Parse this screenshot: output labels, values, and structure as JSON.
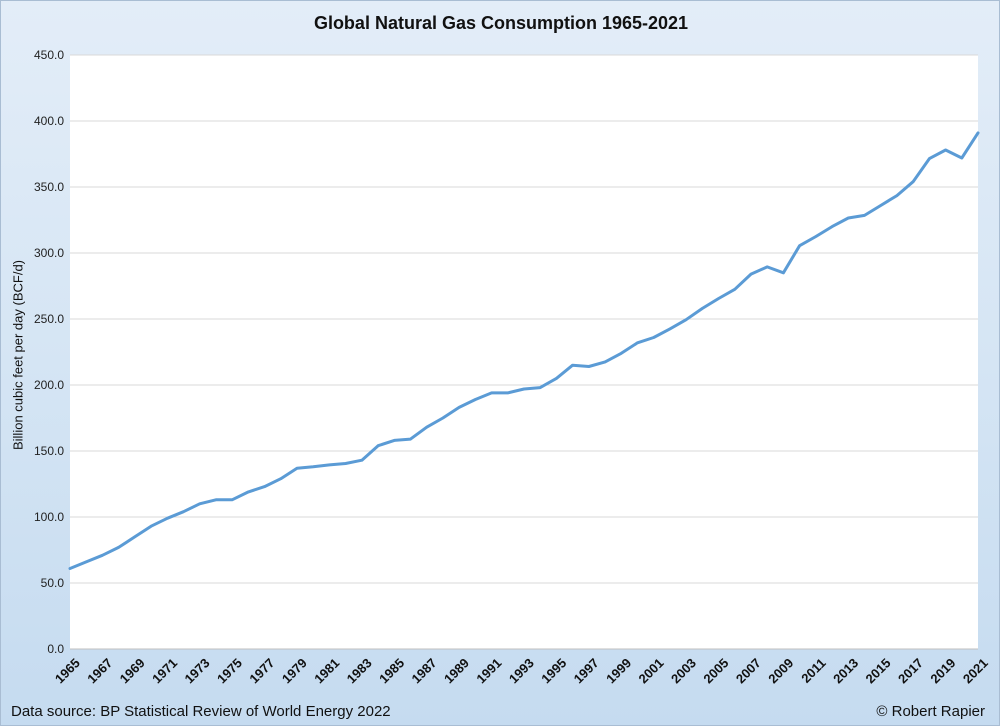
{
  "chart_data": {
    "type": "line",
    "title": "Global Natural Gas Consumption 1965-2021",
    "ylabel": "Billion cubic feet per day (BCF/d)",
    "xlabel": "",
    "ylim": [
      0,
      450
    ],
    "yticks": [
      "0.0",
      "50.0",
      "100.0",
      "150.0",
      "200.0",
      "250.0",
      "300.0",
      "350.0",
      "400.0",
      "450.0"
    ],
    "xtick_labels": [
      "1965",
      "1967",
      "1969",
      "1971",
      "1973",
      "1975",
      "1977",
      "1979",
      "1981",
      "1983",
      "1985",
      "1987",
      "1989",
      "1991",
      "1993",
      "1995",
      "1997",
      "1999",
      "2001",
      "2003",
      "2005",
      "2007",
      "2009",
      "2011",
      "2013",
      "2015",
      "2017",
      "2019",
      "2021"
    ],
    "grid": "horizontal",
    "legend": "none",
    "line_color": "#5b9bd5",
    "x": [
      1965,
      1966,
      1967,
      1968,
      1969,
      1970,
      1971,
      1972,
      1973,
      1974,
      1975,
      1976,
      1977,
      1978,
      1979,
      1980,
      1981,
      1982,
      1983,
      1984,
      1985,
      1986,
      1987,
      1988,
      1989,
      1990,
      1991,
      1992,
      1993,
      1994,
      1995,
      1996,
      1997,
      1998,
      1999,
      2000,
      2001,
      2002,
      2003,
      2004,
      2005,
      2006,
      2007,
      2008,
      2009,
      2010,
      2011,
      2012,
      2013,
      2014,
      2015,
      2016,
      2017,
      2018,
      2019,
      2020,
      2021
    ],
    "series": [
      {
        "values": [
          61,
          66,
          71,
          77,
          85,
          93,
          99,
          104,
          110,
          113,
          113,
          119,
          123,
          129,
          137,
          138,
          139.5,
          140.5,
          143,
          154,
          158,
          159,
          168,
          175,
          183,
          189,
          194,
          194,
          197,
          198,
          205,
          215,
          214,
          217.5,
          224,
          232,
          236,
          242.5,
          249.5,
          258,
          265.5,
          272.5,
          284,
          289.5,
          285,
          305.5,
          312.5,
          320,
          326.5,
          328.5,
          336,
          343.5,
          354,
          371.5,
          378,
          372,
          391
        ]
      }
    ]
  },
  "footer": {
    "source": "Data source: BP Statistical Review of World Energy 2022",
    "credit": "© Robert Rapier"
  }
}
